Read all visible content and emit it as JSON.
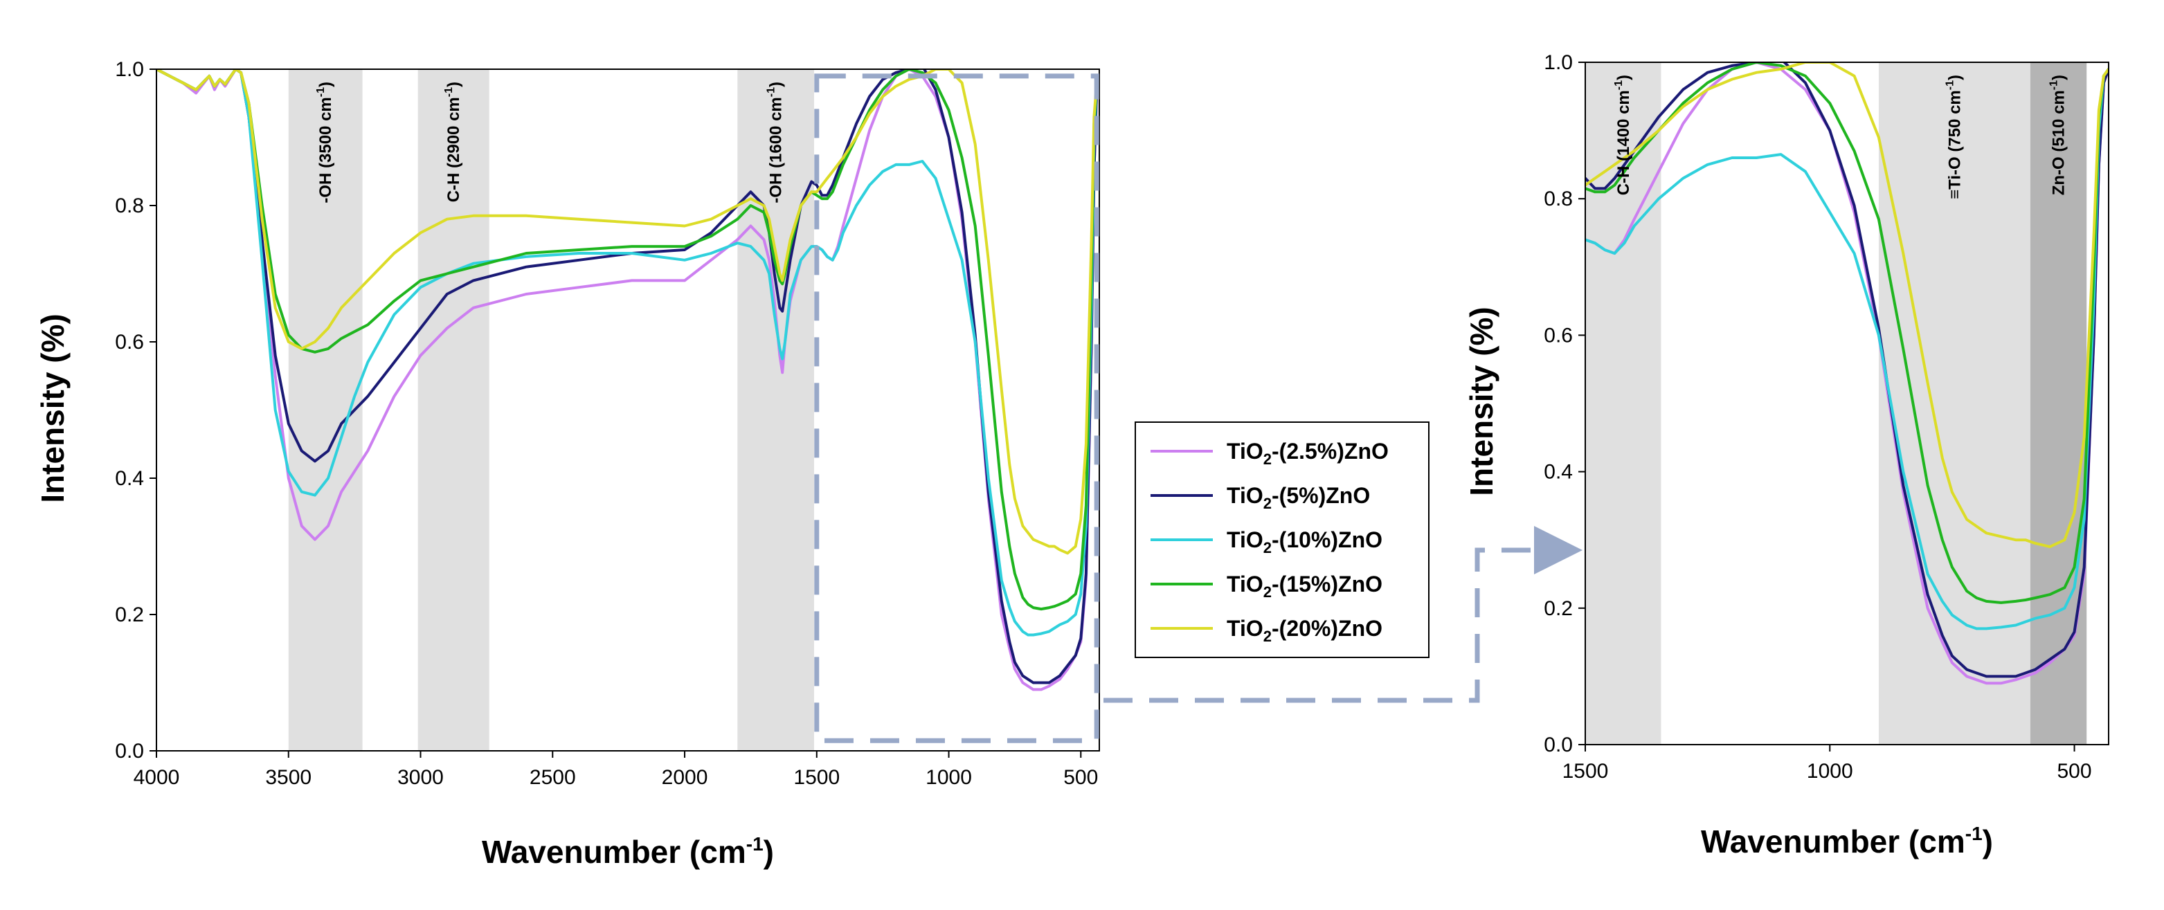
{
  "chart_data": [
    {
      "type": "line",
      "id": "main",
      "xlabel": "Wavenumber (cm",
      "xlabel_sup": "-1",
      "xlabel_close": ")",
      "ylabel": "Intensity (%)",
      "xlim": [
        4000,
        430
      ],
      "ylim": [
        0,
        1.0
      ],
      "x_ticks": [
        4000,
        3500,
        3000,
        2500,
        2000,
        1500,
        1000,
        500
      ],
      "x_tick_labels": [
        "4000",
        "3500",
        "3000",
        "2500",
        "2000",
        "1500",
        "1000",
        "500"
      ],
      "y_ticks": [
        0,
        0.2,
        0.4,
        0.6,
        0.8,
        1.0
      ],
      "y_tick_labels": [
        "0.0",
        "0.2",
        "0.4",
        "0.6",
        "0.8",
        "1.0"
      ],
      "bands": [
        {
          "from": 3500,
          "to": 3220,
          "shade": "#e0e0e0",
          "label": "-OH (3500 cm",
          "label_sup": "-1",
          "label_close": ")"
        },
        {
          "from": 3010,
          "to": 2740,
          "shade": "#e0e0e0",
          "label": "C-H (2900 cm",
          "label_sup": "-1",
          "label_close": ")"
        },
        {
          "from": 1800,
          "to": 1510,
          "shade": "#e0e0e0",
          "label": "-OH (1600 cm",
          "label_sup": "-1",
          "label_close": ")"
        }
      ],
      "zoom_box": {
        "x_from": 1500,
        "x_to": 440,
        "y_from": 0.015,
        "y_to": 0.99
      }
    },
    {
      "type": "line",
      "id": "zoom",
      "xlabel": "Wavenumber (cm",
      "xlabel_sup": "-1",
      "xlabel_close": ")",
      "ylabel": "Intensity (%)",
      "xlim": [
        1500,
        430
      ],
      "ylim": [
        0,
        1.0
      ],
      "x_ticks": [
        1500,
        1000,
        500
      ],
      "x_tick_labels": [
        "1500",
        "1000",
        "500"
      ],
      "y_ticks": [
        0,
        0.2,
        0.4,
        0.6,
        0.8,
        1.0
      ],
      "y_tick_labels": [
        "0.0",
        "0.2",
        "0.4",
        "0.6",
        "0.8",
        "1.0"
      ],
      "bands": [
        {
          "from": 1500,
          "to": 1345,
          "shade": "#e0e0e0",
          "label": "C-H (1400 cm",
          "label_sup": "-1",
          "label_close": ")"
        },
        {
          "from": 900,
          "to": 590,
          "shade": "#e0e0e0",
          "label": "≡Ti-O (750 cm",
          "label_sup": "-1",
          "label_close": ")"
        },
        {
          "from": 590,
          "to": 475,
          "shade": "#b4b4b4",
          "label": "Zn-O (510 cm",
          "label_sup": "-1",
          "label_close": ")"
        }
      ]
    }
  ],
  "series": [
    {
      "name": "TiO2-(2.5%)ZnO",
      "legend_main": "TiO",
      "legend_sub": "2",
      "legend_rest": "-(2.5%)ZnO",
      "color": "#cc7ff0",
      "x": [
        4000,
        3900,
        3850,
        3800,
        3780,
        3760,
        3740,
        3700,
        3680,
        3650,
        3600,
        3550,
        3500,
        3450,
        3400,
        3350,
        3300,
        3250,
        3200,
        3100,
        3000,
        2900,
        2800,
        2600,
        2400,
        2200,
        2000,
        1900,
        1800,
        1750,
        1700,
        1680,
        1660,
        1640,
        1630,
        1620,
        1600,
        1560,
        1520,
        1500,
        1480,
        1460,
        1440,
        1420,
        1400,
        1350,
        1300,
        1250,
        1200,
        1150,
        1100,
        1050,
        1000,
        950,
        900,
        850,
        800,
        770,
        750,
        720,
        700,
        680,
        650,
        620,
        600,
        580,
        550,
        520,
        500,
        480,
        460,
        450,
        440,
        430
      ],
      "y": [
        1.0,
        0.98,
        0.965,
        0.99,
        0.97,
        0.985,
        0.975,
        1.0,
        0.995,
        0.93,
        0.75,
        0.55,
        0.4,
        0.33,
        0.31,
        0.33,
        0.38,
        0.41,
        0.44,
        0.52,
        0.58,
        0.62,
        0.65,
        0.67,
        0.68,
        0.69,
        0.69,
        0.72,
        0.75,
        0.77,
        0.75,
        0.72,
        0.66,
        0.58,
        0.555,
        0.6,
        0.66,
        0.72,
        0.74,
        0.74,
        0.735,
        0.725,
        0.72,
        0.74,
        0.77,
        0.84,
        0.91,
        0.96,
        0.99,
        1.0,
        0.99,
        0.96,
        0.9,
        0.78,
        0.6,
        0.37,
        0.2,
        0.15,
        0.12,
        0.1,
        0.095,
        0.09,
        0.09,
        0.095,
        0.1,
        0.105,
        0.12,
        0.14,
        0.16,
        0.25,
        0.6,
        0.85,
        0.97,
        0.99
      ]
    },
    {
      "name": "TiO2-(5%)ZnO",
      "legend_main": "TiO",
      "legend_sub": "2",
      "legend_rest": "-(5%)ZnO",
      "color": "#1a1a75",
      "x": [
        4000,
        3900,
        3850,
        3800,
        3780,
        3760,
        3740,
        3700,
        3680,
        3650,
        3600,
        3550,
        3500,
        3450,
        3400,
        3350,
        3300,
        3250,
        3200,
        3100,
        3000,
        2900,
        2800,
        2600,
        2400,
        2200,
        2000,
        1900,
        1800,
        1750,
        1700,
        1680,
        1660,
        1640,
        1630,
        1620,
        1600,
        1560,
        1520,
        1500,
        1480,
        1460,
        1440,
        1420,
        1400,
        1350,
        1300,
        1250,
        1200,
        1150,
        1100,
        1050,
        1000,
        950,
        900,
        850,
        800,
        770,
        750,
        720,
        700,
        680,
        650,
        620,
        600,
        580,
        550,
        520,
        500,
        480,
        460,
        450,
        440,
        430
      ],
      "y": [
        1.0,
        0.98,
        0.97,
        0.99,
        0.975,
        0.985,
        0.978,
        1.0,
        0.995,
        0.93,
        0.75,
        0.58,
        0.48,
        0.44,
        0.425,
        0.44,
        0.48,
        0.5,
        0.52,
        0.57,
        0.62,
        0.67,
        0.69,
        0.71,
        0.72,
        0.73,
        0.735,
        0.76,
        0.8,
        0.82,
        0.8,
        0.76,
        0.7,
        0.65,
        0.645,
        0.67,
        0.72,
        0.8,
        0.835,
        0.83,
        0.815,
        0.815,
        0.83,
        0.85,
        0.87,
        0.92,
        0.96,
        0.985,
        0.995,
        1.0,
        1.005,
        0.97,
        0.9,
        0.79,
        0.61,
        0.38,
        0.22,
        0.16,
        0.13,
        0.11,
        0.105,
        0.1,
        0.1,
        0.1,
        0.105,
        0.11,
        0.125,
        0.14,
        0.165,
        0.26,
        0.6,
        0.85,
        0.97,
        0.99
      ]
    },
    {
      "name": "TiO2-(10%)ZnO",
      "legend_main": "TiO",
      "legend_sub": "2",
      "legend_rest": "-(10%)ZnO",
      "color": "#2fd0dc",
      "x": [
        4000,
        3900,
        3850,
        3800,
        3780,
        3760,
        3740,
        3700,
        3680,
        3650,
        3600,
        3550,
        3500,
        3450,
        3400,
        3350,
        3300,
        3250,
        3200,
        3100,
        3000,
        2900,
        2800,
        2600,
        2400,
        2200,
        2000,
        1900,
        1800,
        1750,
        1700,
        1680,
        1660,
        1640,
        1630,
        1620,
        1600,
        1560,
        1520,
        1500,
        1480,
        1460,
        1440,
        1420,
        1400,
        1350,
        1300,
        1250,
        1200,
        1150,
        1100,
        1050,
        1000,
        950,
        900,
        850,
        800,
        770,
        750,
        720,
        700,
        680,
        650,
        620,
        600,
        580,
        550,
        520,
        500,
        480,
        460,
        450,
        440,
        430
      ],
      "y": [
        1.0,
        0.98,
        0.97,
        0.99,
        0.975,
        0.985,
        0.978,
        1.0,
        0.995,
        0.93,
        0.72,
        0.5,
        0.41,
        0.38,
        0.375,
        0.4,
        0.46,
        0.52,
        0.57,
        0.64,
        0.68,
        0.7,
        0.715,
        0.725,
        0.73,
        0.73,
        0.72,
        0.73,
        0.745,
        0.74,
        0.72,
        0.7,
        0.64,
        0.59,
        0.575,
        0.6,
        0.67,
        0.72,
        0.74,
        0.74,
        0.735,
        0.725,
        0.72,
        0.735,
        0.76,
        0.8,
        0.83,
        0.85,
        0.86,
        0.86,
        0.865,
        0.84,
        0.78,
        0.72,
        0.6,
        0.4,
        0.25,
        0.21,
        0.19,
        0.175,
        0.17,
        0.17,
        0.172,
        0.175,
        0.18,
        0.185,
        0.19,
        0.2,
        0.23,
        0.33,
        0.65,
        0.9,
        0.98,
        0.99
      ]
    },
    {
      "name": "TiO2-(15%)ZnO",
      "legend_main": "TiO",
      "legend_sub": "2",
      "legend_rest": "-(15%)ZnO",
      "color": "#1fb51f",
      "x": [
        4000,
        3900,
        3850,
        3800,
        3780,
        3760,
        3740,
        3700,
        3680,
        3650,
        3600,
        3550,
        3500,
        3450,
        3400,
        3350,
        3300,
        3250,
        3200,
        3100,
        3000,
        2900,
        2800,
        2600,
        2400,
        2200,
        2000,
        1900,
        1800,
        1750,
        1700,
        1680,
        1660,
        1640,
        1630,
        1620,
        1600,
        1560,
        1520,
        1500,
        1480,
        1460,
        1440,
        1420,
        1400,
        1350,
        1300,
        1250,
        1200,
        1150,
        1100,
        1050,
        1000,
        950,
        900,
        850,
        800,
        770,
        750,
        720,
        700,
        680,
        650,
        620,
        600,
        580,
        550,
        520,
        500,
        480,
        460,
        450,
        440,
        430
      ],
      "y": [
        1.0,
        0.98,
        0.97,
        0.99,
        0.975,
        0.985,
        0.978,
        1.0,
        0.995,
        0.95,
        0.8,
        0.67,
        0.61,
        0.59,
        0.585,
        0.59,
        0.605,
        0.615,
        0.625,
        0.66,
        0.69,
        0.7,
        0.71,
        0.73,
        0.735,
        0.74,
        0.74,
        0.755,
        0.78,
        0.8,
        0.79,
        0.76,
        0.72,
        0.69,
        0.685,
        0.7,
        0.74,
        0.8,
        0.82,
        0.815,
        0.81,
        0.81,
        0.82,
        0.84,
        0.86,
        0.9,
        0.94,
        0.97,
        0.99,
        1.0,
        0.995,
        0.98,
        0.94,
        0.87,
        0.77,
        0.58,
        0.38,
        0.3,
        0.26,
        0.225,
        0.215,
        0.21,
        0.208,
        0.21,
        0.212,
        0.215,
        0.22,
        0.23,
        0.26,
        0.36,
        0.7,
        0.92,
        0.98,
        0.99
      ]
    },
    {
      "name": "TiO2-(20%)ZnO",
      "legend_main": "TiO",
      "legend_sub": "2",
      "legend_rest": "-(20%)ZnO",
      "color": "#dcdc28",
      "x": [
        4000,
        3900,
        3850,
        3800,
        3780,
        3760,
        3740,
        3700,
        3680,
        3650,
        3600,
        3550,
        3500,
        3450,
        3400,
        3350,
        3300,
        3250,
        3200,
        3100,
        3000,
        2900,
        2800,
        2600,
        2400,
        2200,
        2000,
        1900,
        1800,
        1750,
        1700,
        1680,
        1660,
        1640,
        1630,
        1620,
        1600,
        1560,
        1520,
        1500,
        1480,
        1460,
        1440,
        1420,
        1400,
        1350,
        1300,
        1250,
        1200,
        1150,
        1100,
        1050,
        1000,
        950,
        900,
        850,
        800,
        770,
        750,
        720,
        700,
        680,
        650,
        620,
        600,
        580,
        550,
        520,
        500,
        480,
        460,
        450,
        440,
        430
      ],
      "y": [
        1.0,
        0.98,
        0.97,
        0.99,
        0.975,
        0.985,
        0.978,
        1.0,
        0.995,
        0.95,
        0.78,
        0.65,
        0.6,
        0.59,
        0.6,
        0.62,
        0.65,
        0.67,
        0.69,
        0.73,
        0.76,
        0.78,
        0.785,
        0.785,
        0.78,
        0.775,
        0.77,
        0.78,
        0.8,
        0.81,
        0.8,
        0.78,
        0.74,
        0.7,
        0.69,
        0.71,
        0.75,
        0.8,
        0.82,
        0.82,
        0.83,
        0.84,
        0.85,
        0.86,
        0.87,
        0.9,
        0.935,
        0.96,
        0.975,
        0.985,
        0.99,
        1.0,
        1.0,
        0.98,
        0.89,
        0.72,
        0.53,
        0.42,
        0.37,
        0.33,
        0.32,
        0.31,
        0.305,
        0.3,
        0.3,
        0.295,
        0.29,
        0.3,
        0.34,
        0.45,
        0.75,
        0.93,
        0.98,
        0.99
      ]
    }
  ]
}
